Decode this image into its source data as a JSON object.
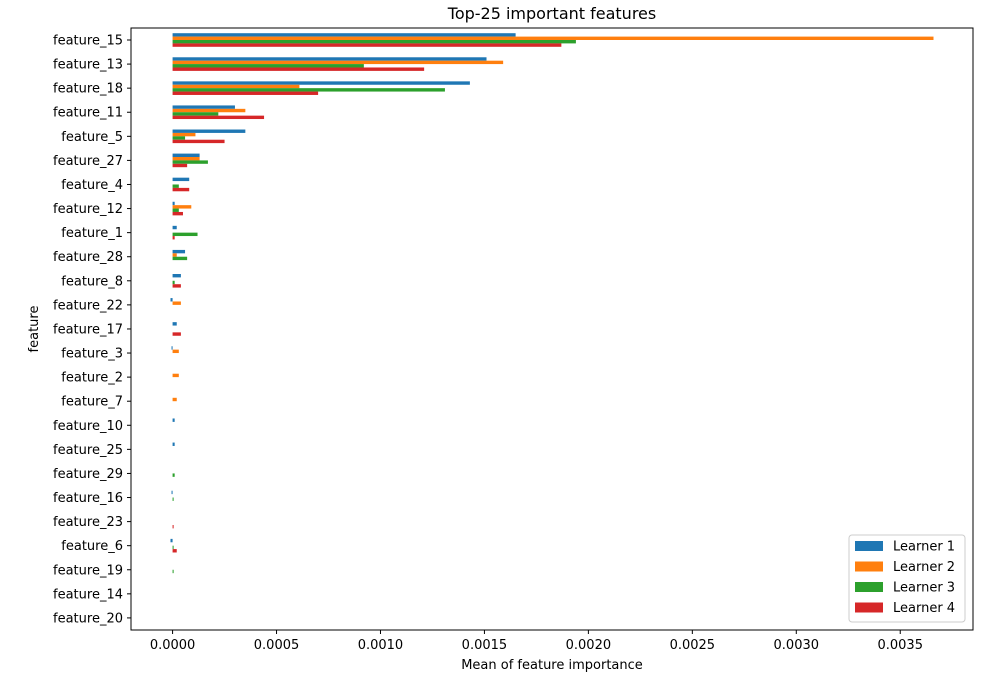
{
  "chart_data": {
    "type": "bar",
    "orientation": "horizontal",
    "title": "Top-25 important features",
    "xlabel": "Mean of feature importance",
    "ylabel": "feature",
    "xlim": [
      -0.0002,
      0.00385
    ],
    "xticks": [
      0.0,
      0.0005,
      0.001,
      0.0015,
      0.002,
      0.0025,
      0.003,
      0.0035
    ],
    "xtick_labels": [
      "0.0000",
      "0.0005",
      "0.0010",
      "0.0015",
      "0.0020",
      "0.0025",
      "0.0030",
      "0.0035"
    ],
    "grid": false,
    "legend_position": "bottom-right",
    "categories": [
      "feature_15",
      "feature_13",
      "feature_18",
      "feature_11",
      "feature_5",
      "feature_27",
      "feature_4",
      "feature_12",
      "feature_1",
      "feature_28",
      "feature_8",
      "feature_22",
      "feature_17",
      "feature_3",
      "feature_2",
      "feature_7",
      "feature_10",
      "feature_25",
      "feature_29",
      "feature_16",
      "feature_23",
      "feature_6",
      "feature_19",
      "feature_14",
      "feature_20"
    ],
    "series": [
      {
        "name": "Learner 1",
        "color": "#1f77b4",
        "values": [
          0.00165,
          0.00151,
          0.00143,
          0.0003,
          0.00035,
          0.00013,
          8e-05,
          1e-05,
          2e-05,
          6e-05,
          4e-05,
          -1e-05,
          2e-05,
          -5e-06,
          0.0,
          0.0,
          1e-05,
          1e-05,
          0.0,
          -5e-06,
          0.0,
          -1e-05,
          0.0,
          0.0,
          0.0
        ]
      },
      {
        "name": "Learner 2",
        "color": "#ff7f0e",
        "values": [
          0.00366,
          0.00159,
          0.00061,
          0.00035,
          0.00011,
          0.00013,
          0.0,
          9e-05,
          0.0,
          2e-05,
          0.0,
          4e-05,
          0.0,
          3e-05,
          3e-05,
          2e-05,
          0.0,
          0.0,
          0.0,
          0.0,
          0.0,
          0.0,
          0.0,
          0.0,
          0.0
        ]
      },
      {
        "name": "Learner 3",
        "color": "#2ca02c",
        "values": [
          0.00194,
          0.00092,
          0.00131,
          0.00022,
          6e-05,
          0.00017,
          3e-05,
          3e-05,
          0.00012,
          7e-05,
          1e-05,
          0.0,
          0.0,
          0.0,
          0.0,
          0.0,
          0.0,
          0.0,
          1e-05,
          5e-06,
          0.0,
          5e-06,
          5e-06,
          0.0,
          0.0
        ]
      },
      {
        "name": "Learner 4",
        "color": "#d62728",
        "values": [
          0.00187,
          0.00121,
          0.0007,
          0.00044,
          0.00025,
          7e-05,
          8e-05,
          5e-05,
          1e-05,
          0.0,
          4e-05,
          0.0,
          4e-05,
          0.0,
          0.0,
          0.0,
          0.0,
          0.0,
          0.0,
          0.0,
          5e-06,
          2e-05,
          0.0,
          0.0,
          0.0
        ]
      }
    ]
  }
}
